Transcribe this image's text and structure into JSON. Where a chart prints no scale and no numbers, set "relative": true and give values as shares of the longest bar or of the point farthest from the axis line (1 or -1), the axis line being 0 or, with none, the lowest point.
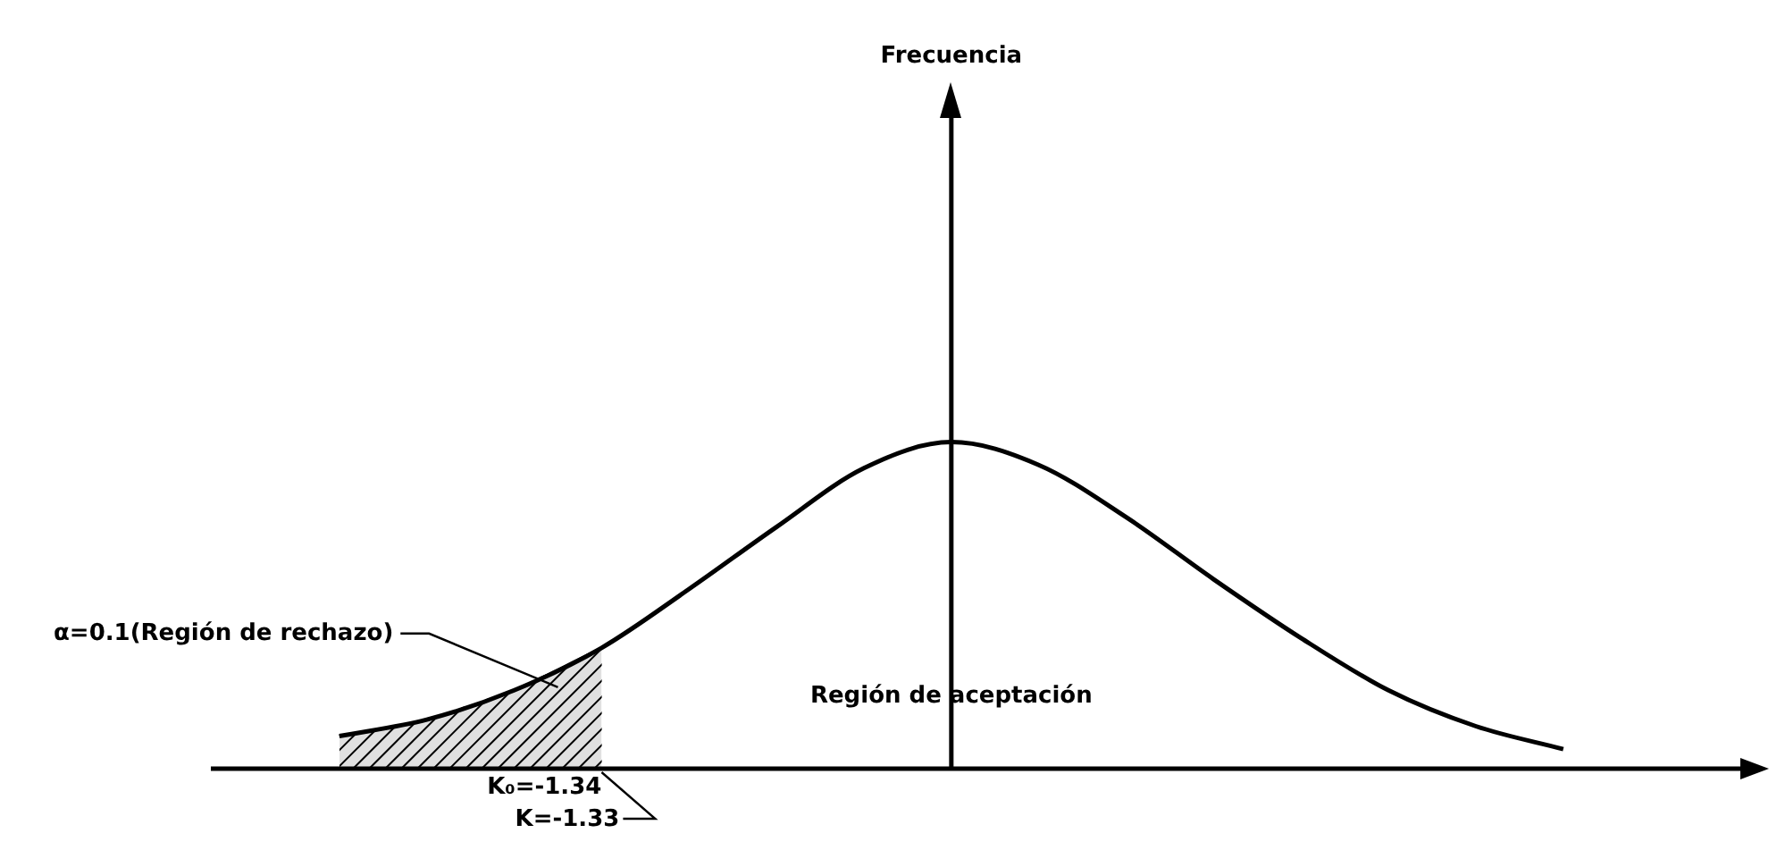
{
  "chart_data": {
    "type": "line",
    "relative": true,
    "legend": false,
    "marker": "none",
    "line_style": "solid",
    "categories": [
      null,
      null,
      null,
      null,
      null,
      null,
      null,
      null,
      null,
      null,
      null,
      null,
      null,
      null,
      null
    ],
    "series": [
      {
        "type": "line",
        "color": "#000000",
        "values": [
          0.1,
          0.15,
          0.24,
          0.37,
          0.55,
          0.74,
          0.92,
          1,
          0.93,
          0.77,
          0.58,
          0.4,
          0.24,
          0.13,
          0.06
        ]
      },
      {
        "type": "area",
        "name": "α=0.1(Región de rechazo)",
        "color": "#000000",
        "values": [
          0.1,
          0.15,
          0.24,
          0.37,
          null,
          null,
          null,
          null,
          null,
          null,
          null,
          null,
          null,
          null,
          null
        ]
      }
    ],
    "annotations": [
      "Frecuencia",
      "Región de aceptación",
      "K₀=-1.34",
      "K=-1.33"
    ]
  }
}
